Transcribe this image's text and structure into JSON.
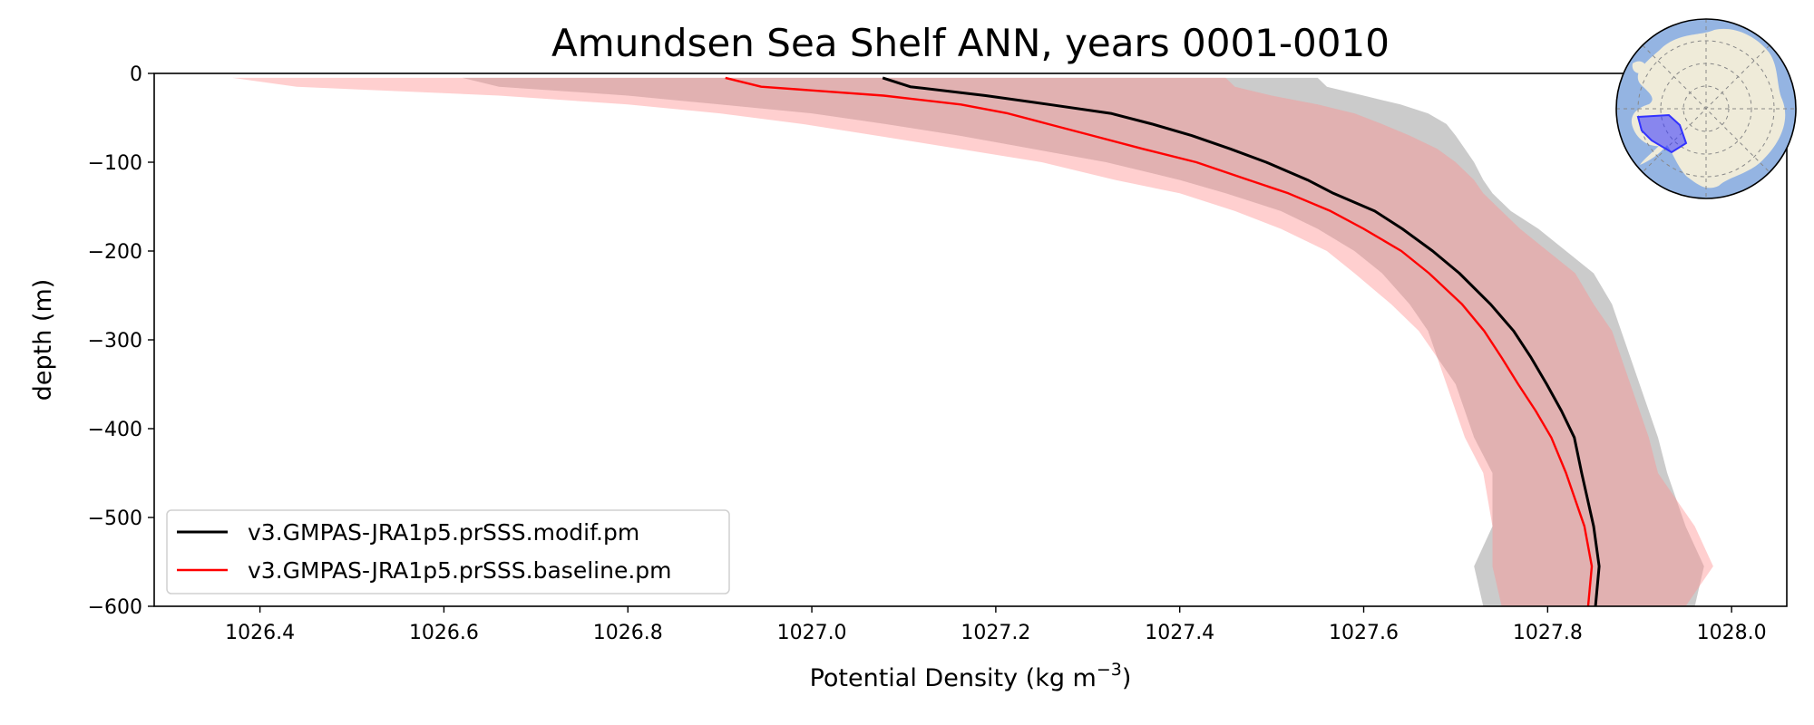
{
  "chart_data": {
    "type": "line",
    "title": "Amundsen Sea Shelf ANN, years 0001-0010",
    "xlabel": "Potential Density (kg m",
    "xlabel_sup": "−3",
    "xlabel_suffix": ")",
    "ylabel": "depth (m)",
    "xlim": [
      1026.285,
      1028.06
    ],
    "ylim": [
      -600,
      0
    ],
    "x_ticks": [
      1026.4,
      1026.6,
      1026.8,
      1027.0,
      1027.2,
      1027.4,
      1027.6,
      1027.8,
      1028.0
    ],
    "x_tick_labels": [
      "1026.4",
      "1026.6",
      "1026.8",
      "1027.0",
      "1027.2",
      "1027.4",
      "1027.6",
      "1027.8",
      "1028.0"
    ],
    "y_ticks": [
      0,
      -100,
      -200,
      -300,
      -400,
      -500,
      -600
    ],
    "y_tick_labels": [
      "0",
      "−100",
      "−200",
      "−300",
      "−400",
      "−500",
      "−600"
    ],
    "grid": false,
    "legend_position": "lower-left",
    "series": [
      {
        "name": "v3.GMPAS-JRA1p5.prSSS.modif.pm",
        "color": "#000000",
        "band_color": "#b3b3b3",
        "band_opacity": 0.68,
        "depth": [
          -5,
          -15,
          -25,
          -35,
          -45,
          -57,
          -70,
          -85,
          -100,
          -120,
          -135,
          -155,
          -175,
          -200,
          -225,
          -260,
          -290,
          -320,
          -350,
          -380,
          -410,
          -450,
          -510,
          -555,
          -600
        ],
        "mean": [
          1027.077,
          1027.107,
          1027.189,
          1027.258,
          1027.325,
          1027.37,
          1027.413,
          1027.455,
          1027.494,
          1027.539,
          1027.567,
          1027.612,
          1027.642,
          1027.675,
          1027.704,
          1027.738,
          1027.763,
          1027.782,
          1027.799,
          1027.815,
          1027.829,
          1027.837,
          1027.85,
          1027.856,
          1027.852
        ],
        "lower": [
          1026.62,
          1026.66,
          1026.8,
          1026.9,
          1027.0,
          1027.08,
          1027.16,
          1027.24,
          1027.32,
          1027.4,
          1027.45,
          1027.51,
          1027.55,
          1027.59,
          1027.62,
          1027.65,
          1027.67,
          1027.68,
          1027.7,
          1027.71,
          1027.72,
          1027.74,
          1027.74,
          1027.72,
          1027.73
        ],
        "upper": [
          1027.55,
          1027.56,
          1027.6,
          1027.64,
          1027.67,
          1027.69,
          1027.7,
          1027.71,
          1027.72,
          1027.73,
          1027.74,
          1027.76,
          1027.79,
          1027.82,
          1027.85,
          1027.87,
          1027.88,
          1027.89,
          1027.9,
          1027.91,
          1027.92,
          1027.93,
          1027.95,
          1027.97,
          1027.96
        ]
      },
      {
        "name": "v3.GMPAS-JRA1p5.prSSS.baseline.pm",
        "color": "#ff0000",
        "band_color": "#ff8c8c",
        "band_opacity": 0.42,
        "depth": [
          -5,
          -15,
          -25,
          -35,
          -45,
          -57,
          -70,
          -85,
          -100,
          -120,
          -135,
          -155,
          -175,
          -200,
          -225,
          -260,
          -290,
          -320,
          -350,
          -380,
          -410,
          -450,
          -510,
          -555,
          -600
        ],
        "mean": [
          1026.906,
          1026.945,
          1027.078,
          1027.162,
          1027.213,
          1027.257,
          1027.305,
          1027.36,
          1027.418,
          1027.475,
          1027.518,
          1027.564,
          1027.6,
          1027.641,
          1027.671,
          1027.707,
          1027.731,
          1027.75,
          1027.768,
          1027.787,
          1027.804,
          1027.82,
          1027.84,
          1027.848,
          1027.844
        ],
        "lower": [
          1026.37,
          1026.44,
          1026.66,
          1026.8,
          1026.9,
          1026.99,
          1027.07,
          1027.16,
          1027.25,
          1027.33,
          1027.4,
          1027.46,
          1027.51,
          1027.56,
          1027.59,
          1027.63,
          1027.66,
          1027.68,
          1027.69,
          1027.7,
          1027.71,
          1027.73,
          1027.74,
          1027.74,
          1027.75
        ],
        "upper": [
          1027.45,
          1027.46,
          1027.5,
          1027.55,
          1027.59,
          1027.62,
          1027.65,
          1027.68,
          1027.7,
          1027.72,
          1027.73,
          1027.75,
          1027.77,
          1027.8,
          1027.83,
          1027.85,
          1027.87,
          1027.88,
          1027.89,
          1027.9,
          1027.91,
          1027.92,
          1027.96,
          1027.98,
          1027.95
        ]
      }
    ]
  },
  "inset_map": {
    "ocean_color": "#94b4e2",
    "land_color": "#efebd9",
    "region_color": "#3333ff"
  }
}
